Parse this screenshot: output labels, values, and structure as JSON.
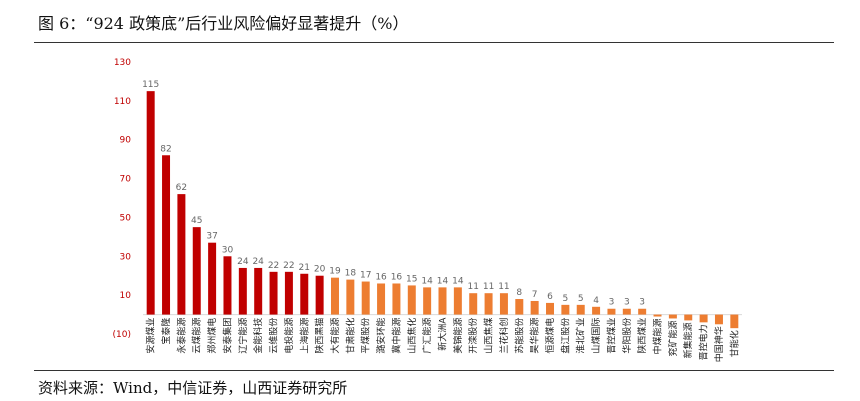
{
  "figure": {
    "title": "图 6：“924 政策底”后行业风险偏好显著提升（%）",
    "source": "资料来源：Wind，中信证券，山西证券研究所"
  },
  "chart_data": {
    "type": "bar",
    "title": "",
    "xlabel": "",
    "ylabel": "",
    "ylim": [
      -10,
      130
    ],
    "yticks": [
      130,
      110,
      90,
      70,
      50,
      30,
      10,
      -10
    ],
    "ytick_labels": [
      "130",
      "110",
      "90",
      "70",
      "50",
      "30",
      "10",
      "(10)"
    ],
    "grid": false,
    "legend": "none",
    "colors": {
      "red": "#c00000",
      "orange": "#ed7d31"
    },
    "categories": [
      "安源煤业",
      "宝泰隆",
      "永泰能源",
      "云煤能源",
      "郑州煤电",
      "安泰集团",
      "辽宁能源",
      "金能科技",
      "云维股份",
      "电投能源",
      "上海能源",
      "陕西黑猫",
      "大有能源",
      "甘肃能化",
      "平煤股份",
      "潞安环能",
      "冀中能源",
      "山西焦化",
      "广汇能源",
      "新大洲A",
      "美锦能源",
      "开滦股份",
      "山西焦煤",
      "兰花科创",
      "苏能股份",
      "昊华能源",
      "恒源煤电",
      "盘江股份",
      "淮北矿业",
      "山煤国际",
      "晋控煤业",
      "华阳股份",
      "陕西煤业",
      "中煤能源",
      "兖矿能源",
      "新集能源",
      "晋控电力",
      "中国神华",
      "甘能化"
    ],
    "values": [
      115,
      82,
      62,
      45,
      37,
      30,
      24,
      24,
      22,
      22,
      21,
      20,
      19,
      18,
      17,
      16,
      16,
      15,
      14,
      14,
      14,
      11,
      11,
      11,
      8,
      7,
      6,
      5,
      5,
      4,
      3,
      3,
      3,
      -1,
      -2,
      -3,
      -4,
      -5,
      -7
    ],
    "value_labels": [
      "115",
      "82",
      "62",
      "45",
      "37",
      "30",
      "24",
      "24",
      "22",
      "22",
      "21",
      "20",
      "19",
      "18",
      "17",
      "16",
      "16",
      "15",
      "14",
      "14",
      "14",
      "11",
      "11",
      "11",
      "8",
      "7",
      "6",
      "5",
      "5",
      "4",
      "3",
      "3",
      "3",
      "",
      "",
      "",
      "",
      "",
      ""
    ],
    "bar_colors": [
      "red",
      "red",
      "red",
      "red",
      "red",
      "red",
      "red",
      "red",
      "red",
      "red",
      "red",
      "red",
      "orange",
      "orange",
      "orange",
      "orange",
      "orange",
      "orange",
      "orange",
      "orange",
      "orange",
      "orange",
      "orange",
      "orange",
      "orange",
      "orange",
      "orange",
      "orange",
      "orange",
      "orange",
      "orange",
      "orange",
      "orange",
      "orange",
      "orange",
      "orange",
      "orange",
      "orange",
      "orange"
    ]
  }
}
